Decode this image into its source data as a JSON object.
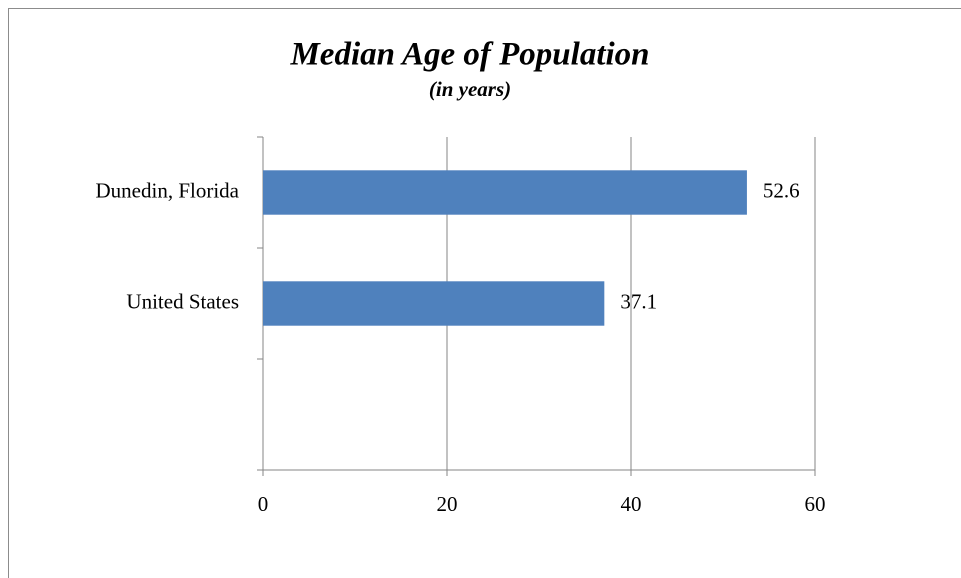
{
  "chart_data": {
    "type": "bar",
    "orientation": "horizontal",
    "title": "Median Age of Population",
    "subtitle": "(in years)",
    "categories": [
      "Dunedin, Florida",
      "United States",
      null
    ],
    "values": [
      52.6,
      37.1,
      null
    ],
    "color": "#4f81bd",
    "xlim": [
      0,
      60
    ],
    "xticks": [
      0,
      20,
      40,
      60
    ],
    "grid": true
  }
}
